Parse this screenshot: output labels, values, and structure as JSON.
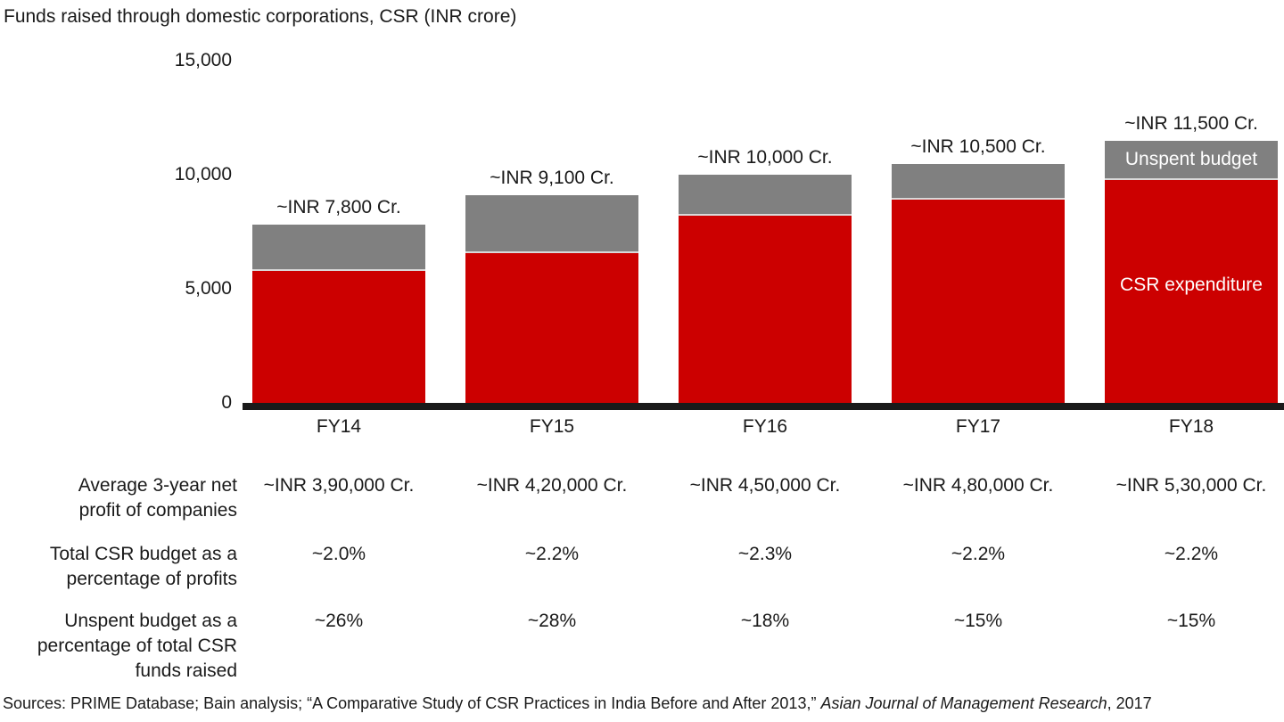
{
  "title": "Funds raised through domestic corporations, CSR (INR crore)",
  "colors": {
    "expenditure": "#CC0000",
    "unspent": "#808080",
    "segment_separator": "#D9D9D9",
    "axis": "#1A1A1A",
    "text": "#1A1A1A",
    "in_bar_text": "#FFFFFF"
  },
  "chart_data": {
    "type": "bar",
    "stacked": true,
    "title": "Funds raised through domestic corporations, CSR (INR crore)",
    "categories": [
      "FY14",
      "FY15",
      "FY16",
      "FY17",
      "FY18"
    ],
    "series": [
      {
        "name": "CSR expenditure",
        "color_key": "expenditure",
        "values": [
          5772,
          6552,
          8200,
          8925,
          9775
        ]
      },
      {
        "name": "Unspent budget",
        "color_key": "unspent",
        "values": [
          2028,
          2548,
          1800,
          1575,
          1725
        ]
      }
    ],
    "totals": [
      7800,
      9100,
      10000,
      10500,
      11500
    ],
    "bar_labels": [
      "~INR 7,800 Cr.",
      "~INR 9,100 Cr.",
      "~INR 10,000 Cr.",
      "~INR 10,500 Cr.",
      "~INR 11,500 Cr."
    ],
    "ylim": [
      0,
      15000
    ],
    "yticks": [
      {
        "value": 0,
        "label": "0"
      },
      {
        "value": 5000,
        "label": "5,000"
      },
      {
        "value": 10000,
        "label": "10,000"
      },
      {
        "value": 15000,
        "label": "15,000"
      }
    ],
    "grid": false,
    "legend_position": "inside-last-bar",
    "in_bar_labels": {
      "unspent": "Unspent budget",
      "expenditure": "CSR expenditure"
    }
  },
  "table": {
    "rows": [
      {
        "label": "Average 3-year net\nprofit of companies",
        "values": [
          "~INR 3,90,000 Cr.",
          "~INR 4,20,000 Cr.",
          "~INR 4,50,000 Cr.",
          "~INR 4,80,000 Cr.",
          "~INR 5,30,000 Cr."
        ]
      },
      {
        "label": "Total CSR budget as a\npercentage of profits",
        "values": [
          "~2.0%",
          "~2.2%",
          "~2.3%",
          "~2.2%",
          "~2.2%"
        ]
      },
      {
        "label": "Unspent budget as a\npercentage of total CSR\nfunds raised",
        "values": [
          "~26%",
          "~28%",
          "~18%",
          "~15%",
          "~15%"
        ]
      }
    ]
  },
  "footer": {
    "sources_prefix": "Sources: PRIME Database; Bain analysis; “A Comparative Study of CSR Practices in India Before and After 2013,” ",
    "sources_italic": "Asian Journal of Management Research",
    "sources_suffix": ", 2017"
  }
}
